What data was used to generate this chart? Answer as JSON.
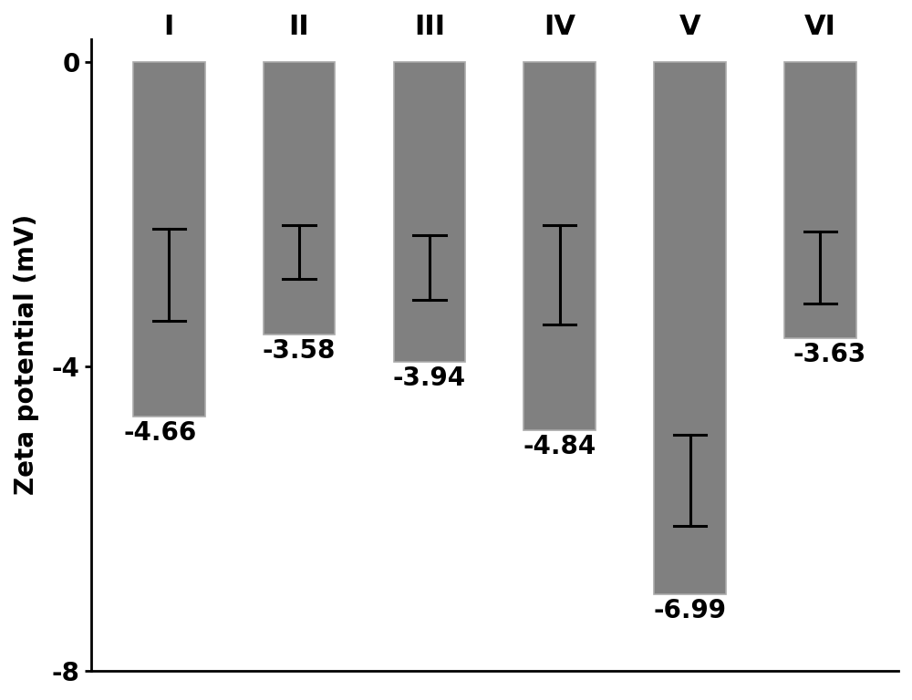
{
  "categories": [
    "I",
    "II",
    "III",
    "IV",
    "V",
    "VI"
  ],
  "values": [
    -4.66,
    -3.58,
    -3.94,
    -4.84,
    -6.99,
    -3.63
  ],
  "errors": [
    1.2,
    0.7,
    0.85,
    1.3,
    1.2,
    0.95
  ],
  "error_centers": [
    -2.8,
    -2.5,
    -2.7,
    -2.8,
    -5.5,
    -2.7
  ],
  "bar_color": "#808080",
  "bar_edge_color": "#aaaaaa",
  "ylabel": "Zeta potential (mV)",
  "ylim": [
    -8,
    0.3
  ],
  "yticks": [
    0,
    -4,
    -8
  ],
  "background_color": "#ffffff",
  "label_fontsize": 20,
  "tick_fontsize": 20,
  "category_fontsize": 22,
  "value_labels": [
    "-4.66",
    "-3.58",
    "-3.94",
    "-4.84",
    "-6.99",
    "-3.63"
  ],
  "bar_width": 0.55
}
